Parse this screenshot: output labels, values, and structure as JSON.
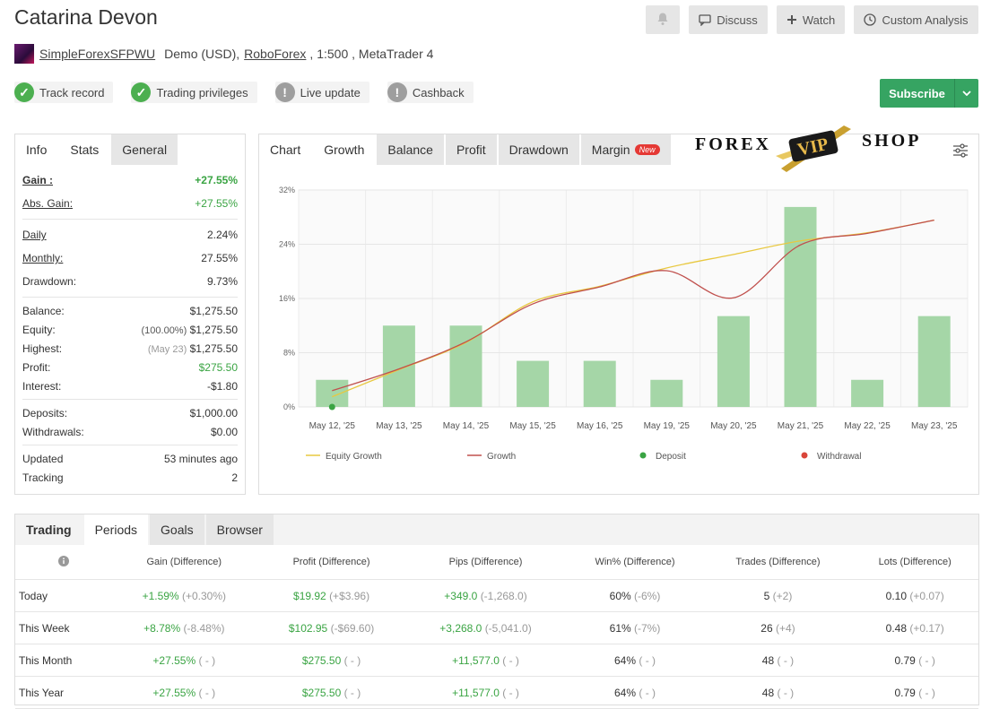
{
  "header": {
    "title": "Catarina Devon",
    "discuss": "Discuss",
    "watch": "Watch",
    "custom_analysis": "Custom Analysis"
  },
  "account": {
    "name": "SimpleForexSFPWU",
    "type": "Demo (USD),",
    "broker": "RoboForex",
    "leverage": ", 1:500 , MetaTrader 4"
  },
  "badges": [
    {
      "label": "Track record",
      "state": "verified"
    },
    {
      "label": "Trading privileges",
      "state": "verified"
    },
    {
      "label": "Live update",
      "state": "unverified"
    },
    {
      "label": "Cashback",
      "state": "unverified"
    }
  ],
  "subscribe": "Subscribe",
  "info_tabs": [
    "Info",
    "Stats",
    "General"
  ],
  "stats": {
    "gain": {
      "label": "Gain :",
      "value": "+27.55%"
    },
    "abs_gain": {
      "label": "Abs. Gain:",
      "value": "+27.55%"
    },
    "daily": {
      "label": "Daily",
      "value": "2.24%"
    },
    "monthly": {
      "label": "Monthly:",
      "value": "27.55%"
    },
    "drawdown": {
      "label": "Drawdown:",
      "value": "9.73%"
    },
    "balance": {
      "label": "Balance:",
      "value": "$1,275.50"
    },
    "equity": {
      "label": "Equity:",
      "note": "(100.00%)",
      "value": "$1,275.50"
    },
    "highest": {
      "label": "Highest:",
      "note": "(May 23)",
      "value": "$1,275.50"
    },
    "profit": {
      "label": "Profit:",
      "value": "$275.50"
    },
    "interest": {
      "label": "Interest:",
      "value": "-$1.80"
    },
    "deposits": {
      "label": "Deposits:",
      "value": "$1,000.00"
    },
    "withdrawals": {
      "label": "Withdrawals:",
      "value": "$0.00"
    },
    "updated": {
      "label": "Updated",
      "value": "53 minutes ago"
    },
    "tracking": {
      "label": "Tracking",
      "value": "2"
    }
  },
  "chart_tabs": {
    "chart": "Chart",
    "growth": "Growth",
    "balance": "Balance",
    "profit": "Profit",
    "drawdown": "Drawdown",
    "margin": "Margin",
    "new": "New"
  },
  "watermark": {
    "left": "FOREX",
    "center": "VIP",
    "right": "SHOP"
  },
  "chart_data": {
    "type": "bar",
    "categories": [
      "May 12, '25",
      "May 13, '25",
      "May 14, '25",
      "May 15, '25",
      "May 16, '25",
      "May 19, '25",
      "May 20, '25",
      "May 21, '25",
      "May 22, '25",
      "May 23, '25"
    ],
    "bars": [
      4,
      12,
      12,
      6.8,
      6.8,
      4,
      13.4,
      29.5,
      4,
      13.4
    ],
    "equity_growth": [
      1.5,
      5.5,
      9.5,
      15.5,
      17.8,
      20.5,
      22.5,
      24.5,
      25.7,
      27.55
    ],
    "growth": [
      2.4,
      5.6,
      9.6,
      15.2,
      17.7,
      20.1,
      16.1,
      23.9,
      25.6,
      27.55
    ],
    "deposit_points": [
      {
        "x": "May 12, '25",
        "y": 0
      }
    ],
    "yticks": [
      "0%",
      "8%",
      "16%",
      "24%",
      "32%"
    ],
    "ylim": [
      0,
      32
    ],
    "legend": [
      "Equity Growth",
      "Growth",
      "Deposit",
      "Withdrawal"
    ],
    "colors": {
      "bar": "#a5d6a7",
      "equity": "#e8c840",
      "growth": "#c0504d",
      "deposit": "#3aa443",
      "withdrawal": "#d9453a"
    }
  },
  "bottom_tabs": [
    "Trading",
    "Periods",
    "Goals",
    "Browser"
  ],
  "periods": {
    "headers": [
      "Gain (Difference)",
      "Profit (Difference)",
      "Pips (Difference)",
      "Win% (Difference)",
      "Trades (Difference)",
      "Lots (Difference)"
    ],
    "rows": [
      {
        "name": "Today",
        "gain": "+1.59%",
        "gain_d": "(+0.30%)",
        "profit": "$19.92",
        "profit_d": "(+$3.96)",
        "pips": "+349.0",
        "pips_d": "(-1,268.0)",
        "win": "60%",
        "win_d": "(-6%)",
        "trades": "5",
        "trades_d": "(+2)",
        "lots": "0.10",
        "lots_d": "(+0.07)"
      },
      {
        "name": "This Week",
        "gain": "+8.78%",
        "gain_d": "(-8.48%)",
        "profit": "$102.95",
        "profit_d": "(-$69.60)",
        "pips": "+3,268.0",
        "pips_d": "(-5,041.0)",
        "win": "61%",
        "win_d": "(-7%)",
        "trades": "26",
        "trades_d": "(+4)",
        "lots": "0.48",
        "lots_d": "(+0.17)"
      },
      {
        "name": "This Month",
        "gain": "+27.55%",
        "gain_d": "( - )",
        "profit": "$275.50",
        "profit_d": "( - )",
        "pips": "+11,577.0",
        "pips_d": "( - )",
        "win": "64%",
        "win_d": "( - )",
        "trades": "48",
        "trades_d": "( - )",
        "lots": "0.79",
        "lots_d": "( - )"
      },
      {
        "name": "This Year",
        "gain": "+27.55%",
        "gain_d": "( - )",
        "profit": "$275.50",
        "profit_d": "( - )",
        "pips": "+11,577.0",
        "pips_d": "( - )",
        "win": "64%",
        "win_d": "( - )",
        "trades": "48",
        "trades_d": "( - )",
        "lots": "0.79",
        "lots_d": "( - )"
      }
    ]
  }
}
